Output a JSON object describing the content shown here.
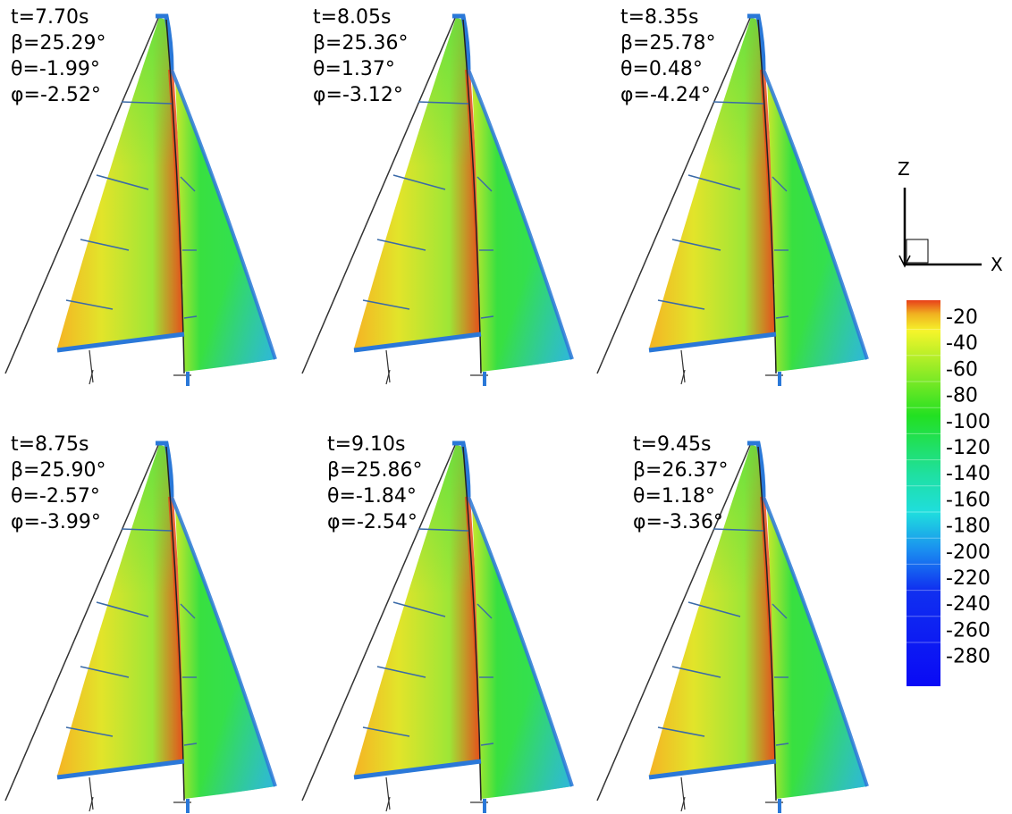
{
  "panels": [
    {
      "t": "t=7.70s",
      "beta": "β=25.29°",
      "theta": "θ=-1.99°",
      "phi": "φ=-2.52°"
    },
    {
      "t": "t=8.05s",
      "beta": "β=25.36°",
      "theta": "θ=1.37°",
      "phi": "φ=-3.12°"
    },
    {
      "t": "t=8.35s",
      "beta": "β=25.78°",
      "theta": "θ=0.48°",
      "phi": "φ=-4.24°"
    },
    {
      "t": "t=8.75s",
      "beta": "β=25.90°",
      "theta": "θ=-2.57°",
      "phi": "φ=-3.99°"
    },
    {
      "t": "t=9.10s",
      "beta": "β=25.86°",
      "theta": "θ=-1.84°",
      "phi": "φ=-2.54°"
    },
    {
      "t": "t=9.45s",
      "beta": "β=26.37°",
      "theta": "θ=1.18°",
      "phi": "φ=-3.36°"
    }
  ],
  "axes": {
    "z_label": "Z",
    "x_label": "X"
  },
  "colorbar": {
    "ticks": [
      "-20",
      "-40",
      "-60",
      "-80",
      "-100",
      "-120",
      "-140",
      "-160",
      "-180",
      "-200",
      "-220",
      "-240",
      "-260",
      "-280"
    ],
    "min": -280,
    "max": -20,
    "colors": {
      "top": "#e8401a",
      "upper": "#f5f52a",
      "mid": "#22e022",
      "lower": "#1fdede",
      "bottom": "#0a0af5"
    }
  },
  "colors": {
    "main_sail_leech": "#f5b020",
    "main_sail_body": "#d8ee30",
    "main_sail_edge": "#6ee040",
    "mast_region": "#e84a1a",
    "jib_body": "#3ae03a",
    "jib_luff": "#30b8e8",
    "boom": "#2a78d8",
    "batten": "#3a6aa8"
  }
}
